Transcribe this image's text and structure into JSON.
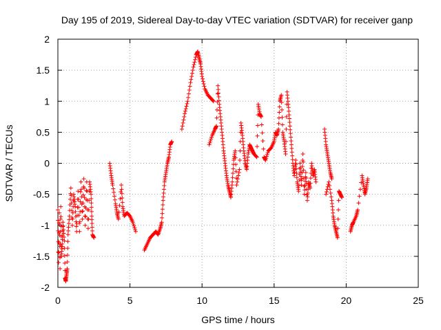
{
  "chart_data": {
    "type": "scatter",
    "title": "Day 195 of 2019, Sidereal Day-to-day VTEC variation (SDTVAR) for receiver ganp",
    "xlabel": "GPS time / hours",
    "ylabel": "SDTVAR / TECUs",
    "xlim": [
      0,
      25
    ],
    "ylim": [
      -2,
      2
    ],
    "xticks": [
      "0",
      "5",
      "10",
      "15",
      "20",
      "25"
    ],
    "yticks": [
      "-2",
      "-1.5",
      "-1",
      "-0.5",
      "0",
      "0.5",
      "1",
      "1.5",
      "2"
    ],
    "grid": true,
    "marker": "+",
    "color": "#ff0000",
    "anchors": [
      [
        0.0,
        -0.75
      ],
      [
        0.05,
        -1.6
      ],
      [
        0.1,
        -0.8
      ],
      [
        0.15,
        -1.7
      ],
      [
        0.2,
        -0.7
      ],
      [
        0.25,
        -1.5
      ],
      [
        0.3,
        -1.3
      ],
      [
        0.35,
        -0.95
      ],
      [
        0.45,
        -1.25
      ],
      [
        0.5,
        -1.85
      ],
      [
        0.55,
        -1.9
      ],
      [
        0.6,
        -1.8
      ],
      [
        0.65,
        -1.7
      ],
      [
        0.7,
        -1.15
      ],
      [
        0.8,
        -0.85
      ],
      [
        0.9,
        -0.4
      ],
      [
        1.0,
        -1.0
      ],
      [
        1.1,
        -0.5
      ],
      [
        1.2,
        -0.7
      ],
      [
        1.3,
        -1.1
      ],
      [
        1.4,
        -0.45
      ],
      [
        1.5,
        -1.1
      ],
      [
        1.6,
        -0.3
      ],
      [
        1.7,
        -0.9
      ],
      [
        1.8,
        -0.25
      ],
      [
        1.9,
        -1.0
      ],
      [
        2.0,
        -0.3
      ],
      [
        2.1,
        -1.05
      ],
      [
        2.2,
        -0.3
      ],
      [
        2.3,
        -0.5
      ],
      [
        2.35,
        -0.85
      ],
      [
        2.4,
        -1.15
      ],
      [
        2.5,
        -1.2
      ],
      [
        3.6,
        0.0
      ],
      [
        3.7,
        -0.2
      ],
      [
        3.8,
        -0.35
      ],
      [
        4.0,
        -0.65
      ],
      [
        4.1,
        -0.8
      ],
      [
        4.2,
        -0.9
      ],
      [
        4.4,
        -0.35
      ],
      [
        4.5,
        -0.7
      ],
      [
        4.6,
        -0.85
      ],
      [
        4.8,
        -0.8
      ],
      [
        5.0,
        -0.85
      ],
      [
        5.2,
        -0.95
      ],
      [
        5.4,
        -1.1
      ],
      [
        6.0,
        -1.4
      ],
      [
        6.2,
        -1.3
      ],
      [
        6.4,
        -1.2
      ],
      [
        6.6,
        -1.15
      ],
      [
        6.8,
        -1.1
      ],
      [
        6.95,
        -1.15
      ],
      [
        7.1,
        -1.05
      ],
      [
        7.2,
        -0.95
      ],
      [
        7.3,
        -0.6
      ],
      [
        7.4,
        -0.3
      ],
      [
        7.5,
        -0.15
      ],
      [
        7.6,
        0.0
      ],
      [
        7.7,
        0.1
      ],
      [
        7.8,
        0.3
      ],
      [
        7.9,
        0.35
      ],
      [
        8.6,
        0.55
      ],
      [
        8.8,
        0.8
      ],
      [
        9.0,
        1.0
      ],
      [
        9.2,
        1.3
      ],
      [
        9.4,
        1.55
      ],
      [
        9.6,
        1.75
      ],
      [
        9.7,
        1.8
      ],
      [
        9.8,
        1.7
      ],
      [
        9.9,
        1.6
      ],
      [
        10.0,
        1.4
      ],
      [
        10.2,
        1.2
      ],
      [
        10.4,
        1.1
      ],
      [
        10.6,
        1.05
      ],
      [
        10.8,
        1.0
      ],
      [
        10.5,
        0.3
      ],
      [
        10.7,
        0.45
      ],
      [
        10.9,
        0.55
      ],
      [
        11.0,
        0.6
      ],
      [
        11.1,
        1.25
      ],
      [
        11.2,
        0.95
      ],
      [
        11.3,
        0.7
      ],
      [
        11.4,
        0.45
      ],
      [
        11.5,
        0.2
      ],
      [
        11.6,
        0.0
      ],
      [
        11.7,
        -0.2
      ],
      [
        11.8,
        -0.35
      ],
      [
        11.9,
        -0.45
      ],
      [
        12.0,
        -0.55
      ],
      [
        12.1,
        -0.3
      ],
      [
        12.2,
        0.05
      ],
      [
        12.3,
        0.2
      ],
      [
        12.4,
        -0.35
      ],
      [
        12.6,
        -0.1
      ],
      [
        12.7,
        0.65
      ],
      [
        12.8,
        0.45
      ],
      [
        12.9,
        0.2
      ],
      [
        13.0,
        0.0
      ],
      [
        13.1,
        -0.1
      ],
      [
        13.2,
        0.15
      ],
      [
        13.3,
        0.3
      ],
      [
        13.4,
        0.25
      ],
      [
        13.5,
        0.2
      ],
      [
        13.6,
        0.15
      ],
      [
        13.8,
        0.1
      ],
      [
        13.9,
        0.95
      ],
      [
        14.0,
        0.8
      ],
      [
        14.1,
        0.75
      ],
      [
        14.3,
        0.1
      ],
      [
        14.4,
        0.05
      ],
      [
        14.6,
        0.2
      ],
      [
        14.8,
        0.25
      ],
      [
        15.0,
        0.35
      ],
      [
        15.1,
        0.5
      ],
      [
        15.2,
        0.45
      ],
      [
        15.3,
        0.55
      ],
      [
        15.4,
        1.0
      ],
      [
        15.5,
        1.1
      ],
      [
        15.6,
        0.5
      ],
      [
        15.7,
        0.35
      ],
      [
        15.8,
        0.15
      ],
      [
        15.9,
        1.15
      ],
      [
        16.0,
        0.9
      ],
      [
        16.1,
        0.6
      ],
      [
        16.2,
        0.3
      ],
      [
        16.3,
        0.0
      ],
      [
        16.4,
        -0.2
      ],
      [
        16.5,
        0.05
      ],
      [
        16.6,
        -0.3
      ],
      [
        16.7,
        -0.45
      ],
      [
        16.8,
        0.0
      ],
      [
        16.9,
        -0.35
      ],
      [
        17.0,
        0.15
      ],
      [
        17.1,
        -0.5
      ],
      [
        17.2,
        -0.15
      ],
      [
        17.3,
        -0.6
      ],
      [
        17.4,
        -0.3
      ],
      [
        17.5,
        -0.4
      ],
      [
        17.6,
        0.0
      ],
      [
        17.7,
        -0.2
      ],
      [
        17.8,
        -0.1
      ],
      [
        17.9,
        -0.3
      ],
      [
        18.5,
        0.55
      ],
      [
        18.6,
        0.3
      ],
      [
        18.7,
        0.15
      ],
      [
        18.8,
        0.0
      ],
      [
        18.9,
        -0.15
      ],
      [
        19.0,
        -0.25
      ],
      [
        18.6,
        -0.5
      ],
      [
        18.8,
        -0.3
      ],
      [
        19.0,
        -0.6
      ],
      [
        19.1,
        -0.85
      ],
      [
        19.2,
        -1.0
      ],
      [
        19.3,
        -1.1
      ],
      [
        19.4,
        -1.2
      ],
      [
        19.5,
        -0.45
      ],
      [
        19.6,
        -0.5
      ],
      [
        19.7,
        -0.55
      ],
      [
        20.3,
        -1.1
      ],
      [
        20.4,
        -1.0
      ],
      [
        20.5,
        -0.95
      ],
      [
        20.7,
        -0.85
      ],
      [
        20.8,
        -0.75
      ],
      [
        21.1,
        -0.2
      ],
      [
        21.2,
        -0.35
      ],
      [
        21.3,
        -0.5
      ],
      [
        21.4,
        -0.4
      ],
      [
        21.5,
        -0.25
      ]
    ]
  }
}
